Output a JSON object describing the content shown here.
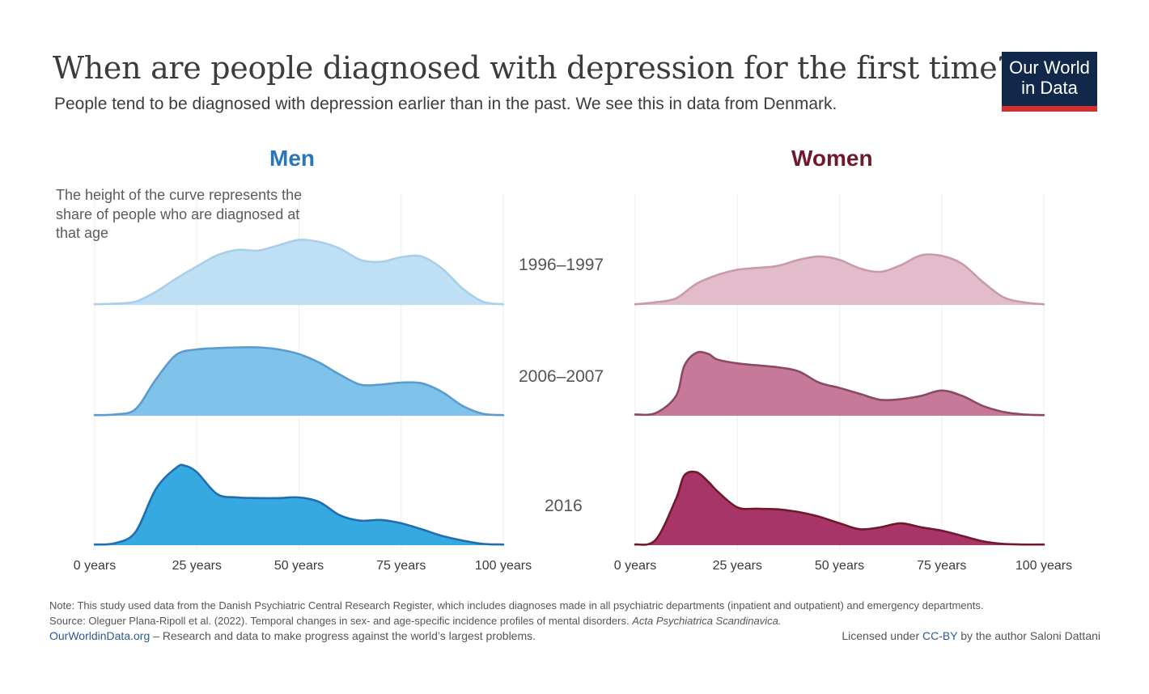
{
  "header": {
    "title": "When are people diagnosed with depression for the first time?",
    "subtitle": "People tend to be diagnosed with depression earlier than in the past. We see this in data from Denmark."
  },
  "logo": {
    "line1": "Our World",
    "line2": "in Data"
  },
  "annotation": "The height of the curve represents the share of people who are diagnosed at that age",
  "chart_data": [
    {
      "type": "area",
      "title": "Men",
      "xlabel": "",
      "ylabel": "",
      "xlim": [
        0,
        100
      ],
      "x_ticks": [
        "0 years",
        "25 years",
        "50 years",
        "75 years",
        "100 years"
      ],
      "x_tick_values": [
        0,
        25,
        50,
        75,
        100
      ],
      "color": "#2a76ba",
      "series": [
        {
          "name": "1996–1997",
          "fill": "#bfe0f4",
          "stroke": "#a8cfea",
          "x": [
            0,
            5,
            10,
            15,
            20,
            25,
            30,
            35,
            40,
            45,
            50,
            55,
            60,
            65,
            70,
            75,
            80,
            85,
            90,
            95,
            100
          ],
          "y": [
            0.01,
            0.02,
            0.05,
            0.2,
            0.4,
            0.58,
            0.75,
            0.83,
            0.82,
            0.9,
            0.98,
            0.95,
            0.85,
            0.68,
            0.65,
            0.72,
            0.73,
            0.55,
            0.25,
            0.05,
            0.01
          ]
        },
        {
          "name": "2006–2007",
          "fill": "#7fc3ea",
          "stroke": "#5a9ccf",
          "x": [
            0,
            5,
            10,
            15,
            20,
            25,
            30,
            35,
            40,
            45,
            50,
            55,
            60,
            65,
            70,
            75,
            80,
            85,
            90,
            95,
            100
          ],
          "y": [
            0.01,
            0.02,
            0.1,
            0.55,
            0.92,
            1.0,
            1.02,
            1.03,
            1.03,
            1.0,
            0.93,
            0.8,
            0.62,
            0.47,
            0.47,
            0.5,
            0.49,
            0.36,
            0.15,
            0.03,
            0.01
          ]
        },
        {
          "name": "2016",
          "fill": "#36a9e0",
          "stroke": "#1f6fb0",
          "x": [
            0,
            5,
            10,
            15,
            20,
            22,
            25,
            30,
            35,
            40,
            45,
            50,
            55,
            60,
            65,
            70,
            75,
            80,
            85,
            90,
            95,
            100
          ],
          "y": [
            0.01,
            0.03,
            0.2,
            0.85,
            1.17,
            1.2,
            1.1,
            0.77,
            0.72,
            0.71,
            0.71,
            0.72,
            0.65,
            0.45,
            0.37,
            0.38,
            0.33,
            0.24,
            0.14,
            0.07,
            0.02,
            0.01
          ]
        }
      ]
    },
    {
      "type": "area",
      "title": "Women",
      "xlabel": "",
      "ylabel": "",
      "xlim": [
        0,
        100
      ],
      "x_ticks": [
        "0 years",
        "25 years",
        "50 years",
        "75 years",
        "100 years"
      ],
      "x_tick_values": [
        0,
        25,
        50,
        75,
        100
      ],
      "color": "#6e1a2c",
      "series": [
        {
          "name": "1996–1997",
          "fill": "#e2bccb",
          "stroke": "#c99aab",
          "x": [
            0,
            5,
            10,
            15,
            20,
            25,
            30,
            35,
            40,
            45,
            50,
            55,
            60,
            65,
            70,
            75,
            80,
            85,
            90,
            95,
            100
          ],
          "y": [
            0.01,
            0.04,
            0.1,
            0.32,
            0.45,
            0.53,
            0.56,
            0.59,
            0.68,
            0.73,
            0.68,
            0.55,
            0.5,
            0.6,
            0.75,
            0.74,
            0.62,
            0.35,
            0.12,
            0.04,
            0.01
          ]
        },
        {
          "name": "2006–2007",
          "fill": "#c7799a",
          "stroke": "#8a4a62",
          "x": [
            0,
            5,
            10,
            12,
            15,
            18,
            20,
            25,
            30,
            35,
            40,
            45,
            50,
            55,
            60,
            65,
            70,
            75,
            80,
            85,
            90,
            95,
            100
          ],
          "y": [
            0.02,
            0.04,
            0.3,
            0.75,
            0.95,
            0.93,
            0.85,
            0.79,
            0.76,
            0.73,
            0.67,
            0.5,
            0.42,
            0.33,
            0.24,
            0.25,
            0.3,
            0.38,
            0.3,
            0.15,
            0.06,
            0.02,
            0.01
          ]
        },
        {
          "name": "2016",
          "fill": "#a83567",
          "stroke": "#6e1a2c",
          "x": [
            0,
            5,
            10,
            12,
            15,
            18,
            20,
            25,
            30,
            35,
            40,
            45,
            50,
            55,
            60,
            65,
            70,
            75,
            80,
            85,
            90,
            95,
            100
          ],
          "y": [
            0.01,
            0.08,
            0.7,
            1.05,
            1.1,
            0.95,
            0.82,
            0.57,
            0.55,
            0.54,
            0.5,
            0.43,
            0.33,
            0.24,
            0.27,
            0.33,
            0.27,
            0.22,
            0.14,
            0.06,
            0.02,
            0.01,
            0.01
          ]
        }
      ]
    }
  ],
  "footer": {
    "note": "Note: This study used data from the Danish Psychiatric Central Research Register, which includes diagnoses made in all psychiatric departments (inpatient and outpatient) and emergency departments.",
    "source_prefix": "Source: Oleguer Plana-Ripoll et al. (2022). Temporal changes in sex- and age-specific incidence profiles of mental disorders.",
    "source_journal": "Acta Psychiatrica Scandinavica.",
    "site_link": "OurWorldinData.org",
    "site_tagline": "– Research and data to make progress against the world’s largest problems.",
    "license_prefix": "Licensed under",
    "license_link": "CC-BY",
    "license_suffix": "by the author Saloni Dattani"
  }
}
